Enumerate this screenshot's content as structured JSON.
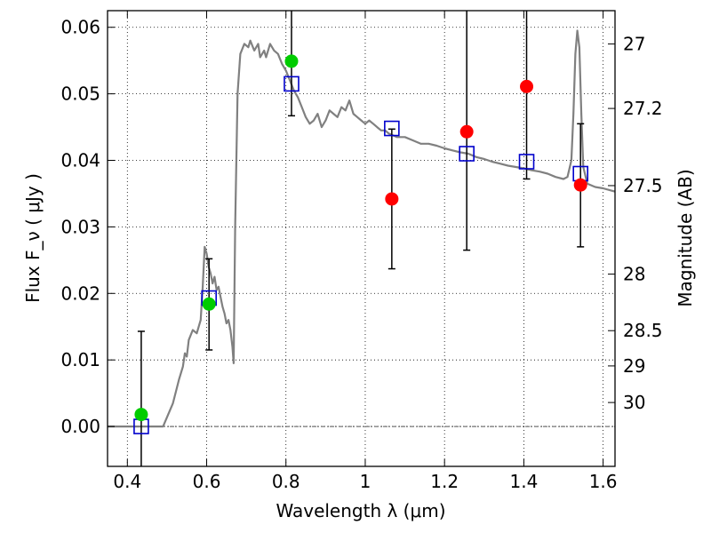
{
  "chart_data": {
    "type": "scatter",
    "xlabel": "Wavelength  λ (μm)",
    "ylabel": "Flux  F_ν  ( μJy )",
    "y2label": "Magnitude (AB)",
    "xlim": [
      0.35,
      1.63
    ],
    "ylim": [
      -0.006,
      0.0625
    ],
    "grid": true,
    "x_ticks": [
      0.4,
      0.6,
      0.8,
      1.0,
      1.2,
      1.4,
      1.6
    ],
    "x_tick_labels": [
      "0.4",
      "0.6",
      "0.8",
      "1",
      "1.2",
      "1.4",
      "1.6"
    ],
    "y_ticks": [
      0.0,
      0.01,
      0.02,
      0.03,
      0.04,
      0.05,
      0.06
    ],
    "y_tick_labels": [
      "0.00",
      "0.01",
      "0.02",
      "0.03",
      "0.04",
      "0.05",
      "0.06"
    ],
    "y2_ticks": [
      {
        "label": "27",
        "flux": 0.0575
      },
      {
        "label": "27.2",
        "flux": 0.0478
      },
      {
        "label": "27.5",
        "flux": 0.0362
      },
      {
        "label": "28",
        "flux": 0.0229
      },
      {
        "label": "28.5",
        "flux": 0.0144
      },
      {
        "label": "29",
        "flux": 0.0091
      },
      {
        "label": "30",
        "flux": 0.0036
      }
    ],
    "reference_line": 0.0,
    "sed_model": {
      "color": "#808080",
      "points": [
        [
          0.35,
          0.0
        ],
        [
          0.49,
          0.0
        ],
        [
          0.515,
          0.0035
        ],
        [
          0.53,
          0.007
        ],
        [
          0.54,
          0.009
        ],
        [
          0.545,
          0.011
        ],
        [
          0.55,
          0.0105
        ],
        [
          0.555,
          0.013
        ],
        [
          0.565,
          0.0145
        ],
        [
          0.575,
          0.014
        ],
        [
          0.58,
          0.015
        ],
        [
          0.585,
          0.016
        ],
        [
          0.59,
          0.021
        ],
        [
          0.595,
          0.027
        ],
        [
          0.6,
          0.026
        ],
        [
          0.605,
          0.024
        ],
        [
          0.61,
          0.023
        ],
        [
          0.615,
          0.0215
        ],
        [
          0.62,
          0.0225
        ],
        [
          0.625,
          0.0205
        ],
        [
          0.63,
          0.021
        ],
        [
          0.635,
          0.0195
        ],
        [
          0.64,
          0.018
        ],
        [
          0.645,
          0.017
        ],
        [
          0.65,
          0.0155
        ],
        [
          0.655,
          0.016
        ],
        [
          0.66,
          0.0145
        ],
        [
          0.665,
          0.012
        ],
        [
          0.668,
          0.0095
        ],
        [
          0.672,
          0.03
        ],
        [
          0.678,
          0.05
        ],
        [
          0.685,
          0.056
        ],
        [
          0.695,
          0.0575
        ],
        [
          0.705,
          0.057
        ],
        [
          0.71,
          0.058
        ],
        [
          0.72,
          0.0565
        ],
        [
          0.73,
          0.0575
        ],
        [
          0.735,
          0.0555
        ],
        [
          0.745,
          0.0565
        ],
        [
          0.75,
          0.0555
        ],
        [
          0.76,
          0.0575
        ],
        [
          0.77,
          0.0565
        ],
        [
          0.78,
          0.056
        ],
        [
          0.79,
          0.0545
        ],
        [
          0.8,
          0.0535
        ],
        [
          0.81,
          0.052
        ],
        [
          0.82,
          0.0505
        ],
        [
          0.83,
          0.0495
        ],
        [
          0.84,
          0.048
        ],
        [
          0.85,
          0.0465
        ],
        [
          0.86,
          0.0455
        ],
        [
          0.87,
          0.046
        ],
        [
          0.88,
          0.047
        ],
        [
          0.89,
          0.045
        ],
        [
          0.9,
          0.046
        ],
        [
          0.91,
          0.0475
        ],
        [
          0.92,
          0.047
        ],
        [
          0.93,
          0.0465
        ],
        [
          0.94,
          0.048
        ],
        [
          0.95,
          0.0475
        ],
        [
          0.96,
          0.049
        ],
        [
          0.97,
          0.047
        ],
        [
          0.98,
          0.0465
        ],
        [
          0.99,
          0.046
        ],
        [
          1.0,
          0.0455
        ],
        [
          1.01,
          0.046
        ],
        [
          1.02,
          0.0455
        ],
        [
          1.03,
          0.045
        ],
        [
          1.04,
          0.0445
        ],
        [
          1.05,
          0.0445
        ],
        [
          1.06,
          0.044
        ],
        [
          1.08,
          0.0435
        ],
        [
          1.1,
          0.0435
        ],
        [
          1.12,
          0.043
        ],
        [
          1.14,
          0.0425
        ],
        [
          1.16,
          0.0425
        ],
        [
          1.18,
          0.0422
        ],
        [
          1.2,
          0.0418
        ],
        [
          1.22,
          0.0415
        ],
        [
          1.24,
          0.0412
        ],
        [
          1.26,
          0.041
        ],
        [
          1.28,
          0.0405
        ],
        [
          1.3,
          0.0402
        ],
        [
          1.32,
          0.0398
        ],
        [
          1.34,
          0.0395
        ],
        [
          1.36,
          0.0392
        ],
        [
          1.38,
          0.039
        ],
        [
          1.4,
          0.0388
        ],
        [
          1.42,
          0.0385
        ],
        [
          1.44,
          0.0383
        ],
        [
          1.46,
          0.038
        ],
        [
          1.48,
          0.0375
        ],
        [
          1.5,
          0.0372
        ],
        [
          1.51,
          0.0375
        ],
        [
          1.52,
          0.04
        ],
        [
          1.525,
          0.047
        ],
        [
          1.53,
          0.056
        ],
        [
          1.535,
          0.0595
        ],
        [
          1.54,
          0.057
        ],
        [
          1.545,
          0.047
        ],
        [
          1.55,
          0.039
        ],
        [
          1.56,
          0.0365
        ],
        [
          1.58,
          0.036
        ],
        [
          1.6,
          0.0358
        ],
        [
          1.63,
          0.0353
        ]
      ]
    },
    "model_photometry": {
      "color": "#0000cc",
      "points": [
        {
          "x": 0.435,
          "y": 0.0
        },
        {
          "x": 0.606,
          "y": 0.0193
        },
        {
          "x": 0.814,
          "y": 0.0515
        },
        {
          "x": 1.067,
          "y": 0.0448
        },
        {
          "x": 1.256,
          "y": 0.041
        },
        {
          "x": 1.407,
          "y": 0.0398
        },
        {
          "x": 1.543,
          "y": 0.038
        }
      ]
    },
    "detections": {
      "color": "#00cc00",
      "points": [
        {
          "x": 0.435,
          "y": 0.0018,
          "y_low": -0.0065,
          "y_high": 0.0143
        },
        {
          "x": 0.606,
          "y": 0.0184,
          "y_low": 0.0115,
          "y_high": 0.0252
        },
        {
          "x": 0.814,
          "y": 0.0549,
          "y_low": 0.0467,
          "y_high": 0.063
        }
      ]
    },
    "upper_limits": {
      "color": "#ff0000",
      "points": [
        {
          "x": 1.067,
          "y": 0.0342,
          "y_low": 0.0237,
          "y_high": 0.0447
        },
        {
          "x": 1.256,
          "y": 0.0443,
          "y_low": 0.0265,
          "y_high": 0.0625
        },
        {
          "x": 1.407,
          "y": 0.0511,
          "y_low": 0.0372,
          "y_high": 0.0625
        },
        {
          "x": 1.543,
          "y": 0.0363,
          "y_low": 0.027,
          "y_high": 0.0455
        }
      ]
    }
  }
}
